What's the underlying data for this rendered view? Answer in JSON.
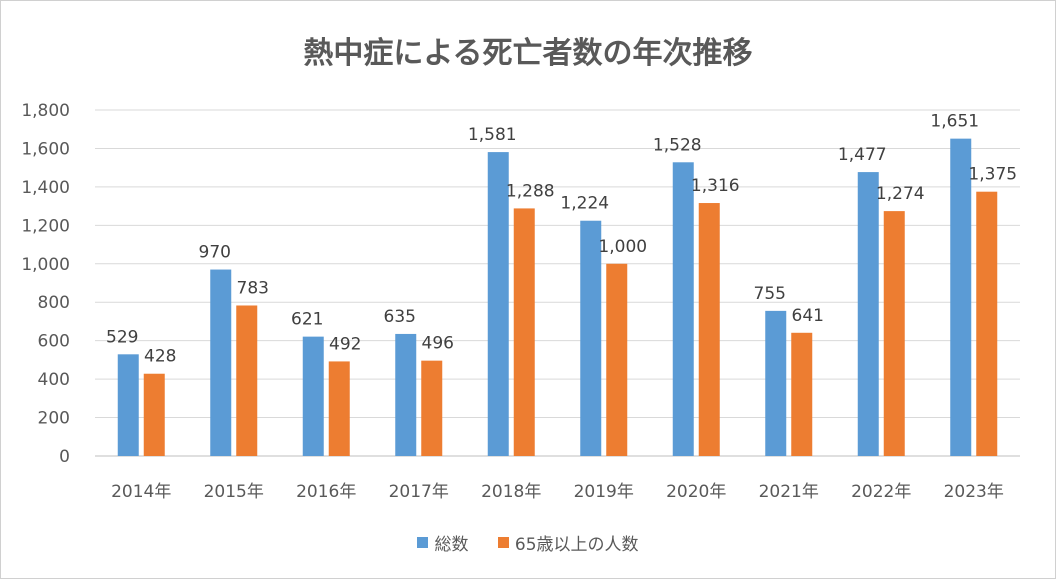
{
  "chart_data": {
    "type": "bar",
    "title": "熱中症による死亡者数の年次推移",
    "categories": [
      "2014年",
      "2015年",
      "2016年",
      "2017年",
      "2018年",
      "2019年",
      "2020年",
      "2021年",
      "2022年",
      "2023年"
    ],
    "series": [
      {
        "name": "総数",
        "color": "#5b9bd5",
        "values": [
          529,
          970,
          621,
          635,
          1581,
          1224,
          1528,
          755,
          1477,
          1651
        ],
        "labels": [
          "529",
          "970",
          "621",
          "635",
          "1,581",
          "1,224",
          "1,528",
          "755",
          "1,477",
          "1,651"
        ]
      },
      {
        "name": "65歳以上の人数",
        "color": "#ed7d31",
        "values": [
          428,
          783,
          492,
          496,
          1288,
          1000,
          1316,
          641,
          1274,
          1375
        ],
        "labels": [
          "428",
          "783",
          "492",
          "496",
          "1,288",
          "1,000",
          "1,316",
          "641",
          "1,274",
          "1,375"
        ]
      }
    ],
    "ylim": [
      0,
      1800
    ],
    "yticks": [
      "0",
      "200",
      "400",
      "600",
      "800",
      "1,000",
      "1,200",
      "1,400",
      "1,600",
      "1,800"
    ],
    "grid": true,
    "legend_position": "bottom"
  }
}
